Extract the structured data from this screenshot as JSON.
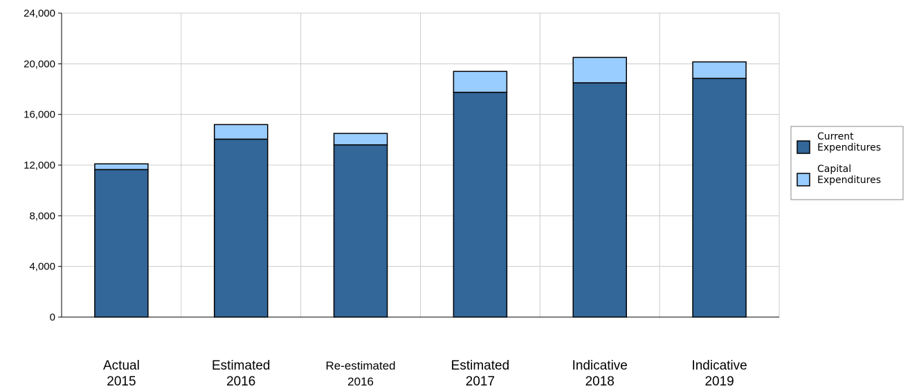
{
  "chart_data": {
    "type": "bar",
    "stacked": true,
    "categories": [
      [
        "Actual",
        "2015"
      ],
      [
        "Estimated",
        "2016"
      ],
      [
        "Re-estimated",
        "2016"
      ],
      [
        "Estimated",
        "2017"
      ],
      [
        "Indicative",
        "2018"
      ],
      [
        "Indicative",
        "2019"
      ]
    ],
    "series": [
      {
        "name": "Current Expenditures",
        "legend_lines": [
          "Current",
          "Expenditures"
        ],
        "color": "#336699",
        "values": [
          11650,
          14050,
          13600,
          17750,
          18500,
          18850
        ]
      },
      {
        "name": "Capital Expenditures",
        "legend_lines": [
          "Capital",
          "Expenditures"
        ],
        "color": "#99ccff",
        "values": [
          450,
          1150,
          900,
          1650,
          2000,
          1300
        ]
      }
    ],
    "yticks": [
      "0",
      "4,000",
      "8,000",
      "12,000",
      "16,000",
      "20,000",
      "24,000"
    ],
    "ylim": [
      0,
      24000
    ],
    "grid": true,
    "legend_position": "right",
    "title": "",
    "xlabel": "",
    "ylabel": ""
  }
}
